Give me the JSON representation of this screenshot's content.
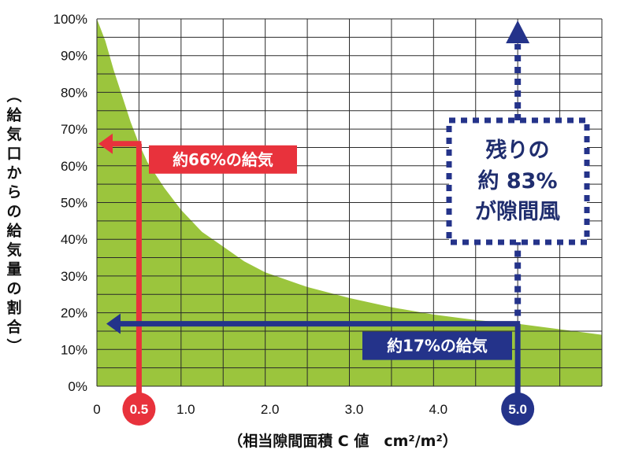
{
  "chart_data": {
    "type": "area",
    "x_ticks": [
      "0",
      "0.5",
      "1.0",
      "2.0",
      "3.0",
      "4.0",
      "5.0"
    ],
    "y_ticks": [
      "0%",
      "10%",
      "20%",
      "30%",
      "40%",
      "50%",
      "60%",
      "70%",
      "80%",
      "90%",
      "100%"
    ],
    "xlim": [
      0,
      6
    ],
    "ylim": [
      0,
      100
    ],
    "xlabel": "（相当隙間面積 C 値　cm²/m²）",
    "ylabel": "（給気口からの給気量の割合）",
    "grid": true,
    "series": [
      {
        "x": [
          0,
          0.1,
          0.2,
          0.3,
          0.4,
          0.5,
          0.6,
          0.8,
          1.0,
          1.25,
          1.5,
          1.75,
          2.0,
          2.5,
          3.0,
          3.5,
          4.0,
          4.5,
          5.0,
          5.5,
          6.0
        ],
        "y": [
          100,
          94,
          86,
          79,
          72,
          66,
          61,
          54,
          48,
          42,
          38,
          34,
          31,
          27,
          24,
          21.5,
          19.5,
          18,
          17,
          15.5,
          14
        ]
      }
    ],
    "annotations": {
      "red": {
        "x": 0.5,
        "y": 66,
        "marker": "0.5",
        "label": "約66%の給気"
      },
      "blue": {
        "x": 5.0,
        "y": 17,
        "marker": "5.0",
        "label": "約17%の給気"
      },
      "box": {
        "lines": [
          "残りの",
          "約 83%",
          "が隙間風"
        ]
      }
    }
  },
  "colors": {
    "area": "#9bc53d",
    "grid": "#2a2a2a",
    "red": "#e8323c",
    "blue": "#24338a",
    "box_text": "#1f2d6e"
  }
}
